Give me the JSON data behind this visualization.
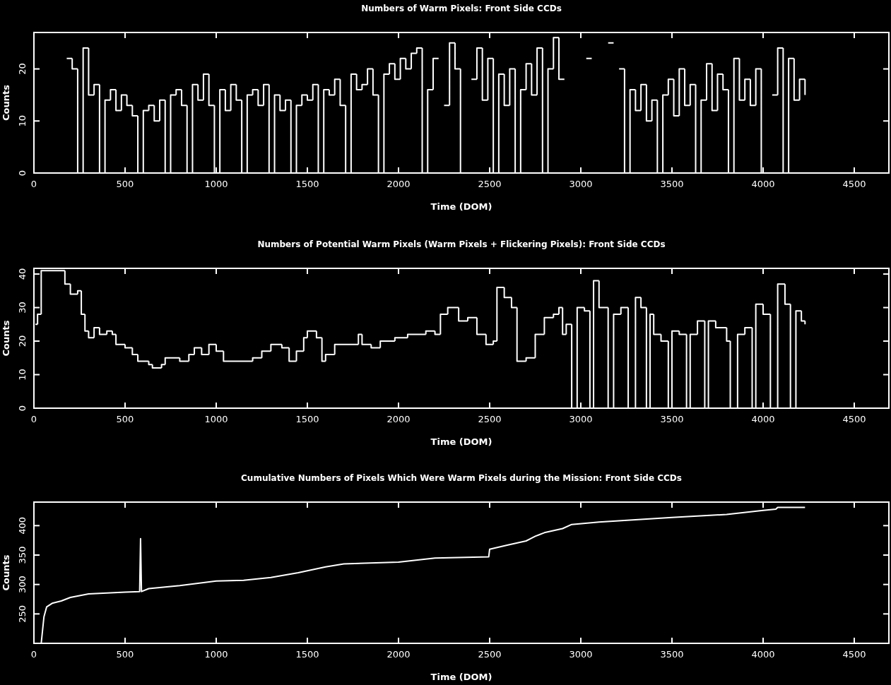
{
  "chart_data": [
    {
      "type": "step",
      "title": "Numbers of Warm Pixels: Front Side CCDs",
      "xlabel": "Time (DOM)",
      "ylabel": "Counts",
      "xlim": [
        0,
        4690
      ],
      "ylim": [
        0,
        27
      ],
      "xticks": [
        0,
        500,
        1000,
        1500,
        2000,
        2500,
        3000,
        3500,
        4000,
        4500
      ],
      "yticks": [
        0,
        10,
        20
      ],
      "x": [
        120,
        150,
        180,
        210,
        240,
        270,
        300,
        330,
        360,
        390,
        420,
        450,
        480,
        510,
        540,
        570,
        600,
        630,
        660,
        690,
        720,
        750,
        780,
        810,
        840,
        870,
        900,
        930,
        960,
        990,
        1020,
        1050,
        1080,
        1110,
        1140,
        1170,
        1200,
        1230,
        1260,
        1290,
        1320,
        1350,
        1380,
        1410,
        1440,
        1470,
        1500,
        1530,
        1560,
        1590,
        1620,
        1650,
        1680,
        1710,
        1740,
        1770,
        1800,
        1830,
        1860,
        1890,
        1920,
        1950,
        1980,
        2010,
        2040,
        2070,
        2100,
        2130,
        2160,
        2190,
        2220,
        2250,
        2280,
        2310,
        2340,
        2370,
        2400,
        2430,
        2460,
        2490,
        2520,
        2550,
        2580,
        2610,
        2640,
        2670,
        2700,
        2730,
        2760,
        2790,
        2820,
        2850,
        2880,
        2910,
        2940,
        2970,
        3000,
        3030,
        3060,
        3090,
        3120,
        3150,
        3180,
        3210,
        3240,
        3270,
        3300,
        3330,
        3360,
        3390,
        3420,
        3450,
        3480,
        3510,
        3540,
        3570,
        3600,
        3630,
        3660,
        3690,
        3720,
        3750,
        3780,
        3810,
        3840,
        3870,
        3900,
        3930,
        3960,
        3990,
        4020,
        4050,
        4080,
        4110,
        4140,
        4170,
        4200,
        4230
      ],
      "series": [
        {
          "color": "#ffffff",
          "values": [
            0,
            null,
            22,
            20,
            0,
            24,
            15,
            17,
            0,
            14,
            16,
            12,
            15,
            13,
            11,
            0,
            12,
            13,
            10,
            14,
            0,
            15,
            16,
            13,
            0,
            17,
            14,
            19,
            13,
            0,
            16,
            12,
            17,
            14,
            0,
            15,
            16,
            13,
            17,
            0,
            15,
            12,
            14,
            0,
            13,
            15,
            14,
            17,
            0,
            16,
            15,
            18,
            13,
            0,
            19,
            16,
            17,
            20,
            15,
            0,
            19,
            21,
            18,
            22,
            20,
            23,
            24,
            0,
            16,
            22,
            null,
            13,
            25,
            20,
            0,
            null,
            18,
            24,
            14,
            22,
            0,
            19,
            13,
            20,
            0,
            16,
            21,
            15,
            24,
            0,
            20,
            26,
            18,
            null,
            0,
            null,
            null,
            22,
            null,
            0,
            null,
            25,
            null,
            20,
            0,
            16,
            12,
            17,
            10,
            14,
            0,
            15,
            18,
            11,
            20,
            13,
            17,
            0,
            14,
            21,
            12,
            19,
            16,
            0,
            22,
            14,
            18,
            13,
            20,
            0,
            null,
            15,
            24,
            0,
            22,
            14,
            18,
            15
          ]
        }
      ]
    },
    {
      "type": "step",
      "title": "Numbers of Potential Warm Pixels (Warm Pixels + Flickering Pixels): Front Side CCDs",
      "xlabel": "Time (DOM)",
      "ylabel": "Counts",
      "xlim": [
        0,
        4690
      ],
      "ylim": [
        0,
        41.7
      ],
      "xticks": [
        0,
        500,
        1000,
        1500,
        2000,
        2500,
        3000,
        3500,
        4000,
        4500
      ],
      "yticks": [
        0,
        10,
        20,
        30,
        40
      ],
      "x": [
        8,
        20,
        40,
        170,
        200,
        240,
        260,
        280,
        300,
        330,
        360,
        400,
        430,
        450,
        500,
        540,
        570,
        600,
        630,
        650,
        700,
        720,
        800,
        850,
        880,
        920,
        960,
        1000,
        1040,
        1100,
        1200,
        1250,
        1300,
        1360,
        1400,
        1440,
        1480,
        1500,
        1550,
        1580,
        1600,
        1650,
        1750,
        1780,
        1800,
        1850,
        1900,
        1980,
        2050,
        2150,
        2200,
        2230,
        2270,
        2330,
        2380,
        2430,
        2480,
        2520,
        2540,
        2580,
        2620,
        2650,
        2700,
        2750,
        2800,
        2850,
        2880,
        2900,
        2920,
        2950,
        2980,
        3020,
        3050,
        3070,
        3100,
        3150,
        3180,
        3220,
        3260,
        3300,
        3330,
        3360,
        3380,
        3400,
        3440,
        3480,
        3500,
        3540,
        3580,
        3600,
        3640,
        3680,
        3700,
        3740,
        3800,
        3820,
        3860,
        3900,
        3940,
        3960,
        4000,
        4040,
        4080,
        4120,
        4150,
        4180,
        4210,
        4230
      ],
      "series": [
        {
          "color": "#ffffff",
          "values": [
            25,
            28,
            41,
            37,
            34,
            35,
            28,
            23,
            21,
            24,
            22,
            23,
            22,
            19,
            18,
            16,
            14,
            14,
            13,
            12,
            13,
            15,
            14,
            16,
            18,
            16,
            19,
            17,
            14,
            14,
            15,
            17,
            19,
            18,
            14,
            17,
            21,
            23,
            21,
            14,
            16,
            19,
            19,
            22,
            19,
            18,
            20,
            21,
            22,
            23,
            22,
            28,
            30,
            26,
            27,
            22,
            19,
            20,
            36,
            33,
            30,
            14,
            15,
            22,
            27,
            28,
            30,
            22,
            25,
            0,
            30,
            29,
            0,
            38,
            30,
            0,
            28,
            30,
            0,
            33,
            30,
            0,
            28,
            22,
            20,
            0,
            23,
            22,
            0,
            22,
            26,
            0,
            26,
            24,
            20,
            0,
            22,
            24,
            0,
            31,
            28,
            0,
            37,
            31,
            0,
            29,
            26,
            25
          ]
        }
      ]
    },
    {
      "type": "line",
      "title": "Cumulative Numbers of Pixels Which Were Warm Pixels during the Mission: Front Side CCDs",
      "xlabel": "Time (DOM)",
      "ylabel": "Counts",
      "xlim": [
        0,
        4690
      ],
      "ylim": [
        200,
        440
      ],
      "xticks": [
        0,
        500,
        1000,
        1500,
        2000,
        2500,
        3000,
        3500,
        4000,
        4500
      ],
      "yticks": [
        250,
        300,
        350,
        400
      ],
      "x": [
        40,
        55,
        70,
        100,
        150,
        200,
        300,
        500,
        580,
        585,
        590,
        630,
        800,
        1000,
        1150,
        1300,
        1450,
        1600,
        1700,
        2000,
        2200,
        2495,
        2500,
        2600,
        2700,
        2750,
        2800,
        2900,
        2950,
        3100,
        3300,
        3500,
        3800,
        4000,
        4070,
        4080,
        4230
      ],
      "series": [
        {
          "color": "#ffffff",
          "values": [
            200,
            245,
            262,
            268,
            272,
            278,
            284,
            287,
            288,
            378,
            288,
            293,
            298,
            306,
            307,
            312,
            320,
            330,
            335,
            338,
            345,
            347,
            360,
            367,
            374,
            382,
            388,
            395,
            402,
            406,
            410,
            414,
            419,
            426,
            428,
            431,
            431
          ]
        }
      ]
    }
  ]
}
